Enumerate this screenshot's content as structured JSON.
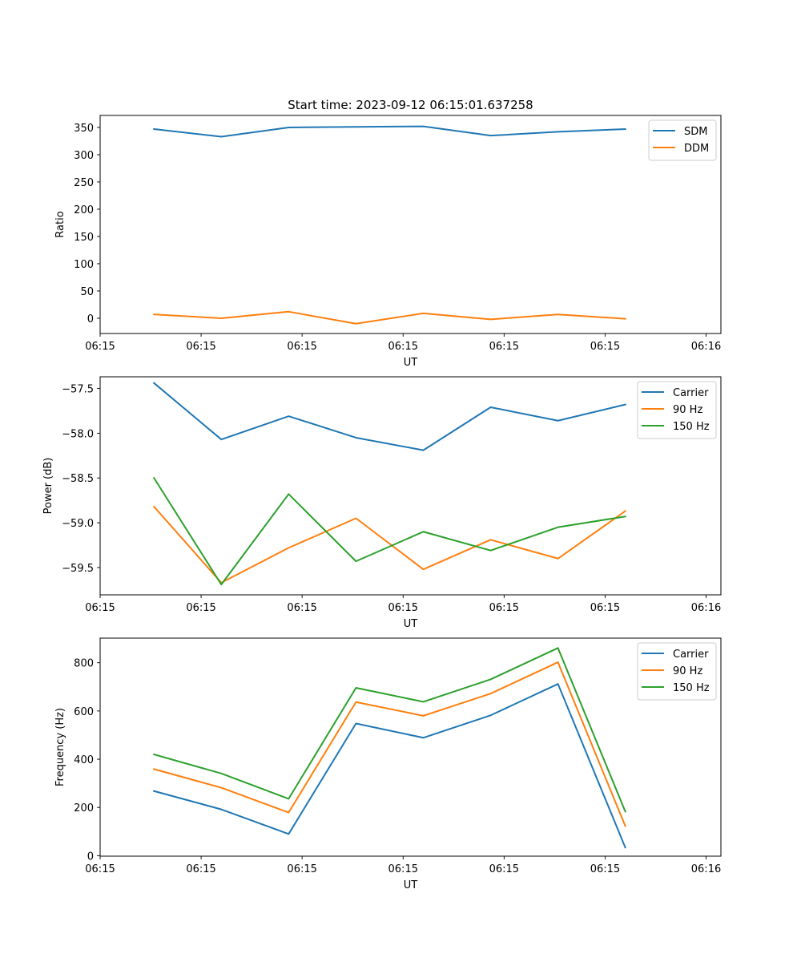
{
  "figure_title": "Start time: 2023-09-12 06:15:01.637258",
  "colors": {
    "blue": "#1f77b4",
    "orange": "#ff7f0e",
    "green": "#2ca02c"
  },
  "chart_data": [
    {
      "type": "line",
      "title": "Start time: 2023-09-12 06:15:01.637258",
      "xlabel": "UT",
      "ylabel": "Ratio",
      "x": [
        1,
        2,
        3,
        4,
        5,
        6,
        7,
        8
      ],
      "xlim": [
        0.2,
        9.42
      ],
      "x_ticks": [
        0.2,
        1.7,
        3.2,
        4.7,
        6.2,
        7.7,
        9.2
      ],
      "x_tick_labels": [
        "06:15",
        "06:15",
        "06:15",
        "06:15",
        "06:15",
        "06:15",
        "06:16"
      ],
      "ylim": [
        -28,
        372
      ],
      "y_ticks": [
        0,
        50,
        100,
        150,
        200,
        250,
        300,
        350
      ],
      "y_tick_labels": [
        "0",
        "50",
        "100",
        "150",
        "200",
        "250",
        "300",
        "350"
      ],
      "legend_position": "top-right",
      "series": [
        {
          "name": "SDM",
          "color": "#1f77b4",
          "values": [
            347,
            333,
            350,
            351,
            352,
            335,
            342,
            347
          ]
        },
        {
          "name": "DDM",
          "color": "#ff7f0e",
          "values": [
            7,
            0,
            12,
            -10,
            9,
            -2,
            7,
            -1
          ]
        }
      ]
    },
    {
      "type": "line",
      "title": "",
      "xlabel": "UT",
      "ylabel": "Power (dB)",
      "x": [
        1,
        2,
        3,
        4,
        5,
        6,
        7,
        8
      ],
      "xlim": [
        0.2,
        9.42
      ],
      "x_ticks": [
        0.2,
        1.7,
        3.2,
        4.7,
        6.2,
        7.7,
        9.2
      ],
      "x_tick_labels": [
        "06:15",
        "06:15",
        "06:15",
        "06:15",
        "06:15",
        "06:15",
        "06:16"
      ],
      "ylim": [
        -59.805,
        -57.37
      ],
      "y_ticks": [
        -59.5,
        -59.0,
        -58.5,
        -58.0,
        -57.5
      ],
      "y_tick_labels": [
        "−59.5",
        "−59.0",
        "−58.5",
        "−58.0",
        "−57.5"
      ],
      "legend_position": "top-right",
      "series": [
        {
          "name": "Carrier",
          "color": "#1f77b4",
          "values": [
            -57.44,
            -58.07,
            -57.81,
            -58.05,
            -58.19,
            -57.71,
            -57.86,
            -57.68
          ]
        },
        {
          "name": "90 Hz",
          "color": "#ff7f0e",
          "values": [
            -58.82,
            -59.67,
            -59.28,
            -58.95,
            -59.52,
            -59.19,
            -59.4,
            -58.87
          ]
        },
        {
          "name": "150 Hz",
          "color": "#2ca02c",
          "values": [
            -58.5,
            -59.69,
            -58.68,
            -59.43,
            -59.1,
            -59.31,
            -59.05,
            -58.93
          ]
        }
      ]
    },
    {
      "type": "line",
      "title": "",
      "xlabel": "UT",
      "ylabel": "Frequency (Hz)",
      "x": [
        1,
        2,
        3,
        4,
        5,
        6,
        7,
        8
      ],
      "xlim": [
        0.2,
        9.42
      ],
      "x_ticks": [
        0.2,
        1.7,
        3.2,
        4.7,
        6.2,
        7.7,
        9.2
      ],
      "x_tick_labels": [
        "06:15",
        "06:15",
        "06:15",
        "06:15",
        "06:15",
        "06:15",
        "06:16"
      ],
      "ylim": [
        -2,
        902
      ],
      "y_ticks": [
        0,
        200,
        400,
        600,
        800
      ],
      "y_tick_labels": [
        "0",
        "200",
        "400",
        "600",
        "800"
      ],
      "legend_position": "top-right",
      "series": [
        {
          "name": "Carrier",
          "color": "#1f77b4",
          "values": [
            268,
            192,
            90,
            548,
            489,
            582,
            712,
            34
          ]
        },
        {
          "name": "90 Hz",
          "color": "#ff7f0e",
          "values": [
            359,
            282,
            179,
            637,
            580,
            672,
            802,
            123
          ]
        },
        {
          "name": "150 Hz",
          "color": "#2ca02c",
          "values": [
            420,
            341,
            236,
            696,
            638,
            731,
            861,
            183
          ]
        }
      ]
    }
  ]
}
